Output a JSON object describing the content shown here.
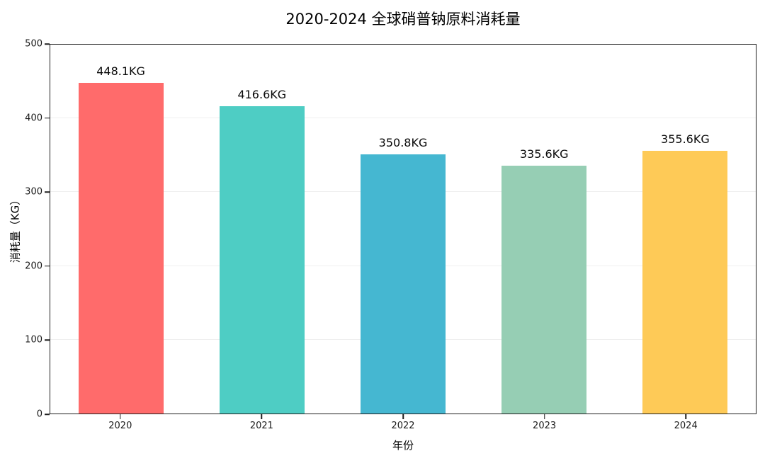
{
  "chart_data": {
    "type": "bar",
    "title": "2020-2024 全球硝普钠原料消耗量",
    "xlabel": "年份",
    "ylabel": "消耗量（KG）",
    "categories": [
      "2020",
      "2021",
      "2022",
      "2023",
      "2024"
    ],
    "values": [
      448.1,
      416.6,
      350.8,
      335.6,
      355.6
    ],
    "value_labels": [
      "448.1KG",
      "416.6KG",
      "350.8KG",
      "335.6KG",
      "355.6KG"
    ],
    "bar_colors": [
      "#FF6B6B",
      "#4ECDC4",
      "#45B7D1",
      "#96CEB4",
      "#FECA57"
    ],
    "ylim": [
      0,
      500
    ],
    "yticks": [
      0,
      100,
      200,
      300,
      400,
      500
    ],
    "grid": "horizontal-light",
    "legend": "none"
  },
  "colors": {
    "axis": "#1f1f1f",
    "gridline": "#efefef",
    "background": "#ffffff",
    "text": "#000000"
  }
}
